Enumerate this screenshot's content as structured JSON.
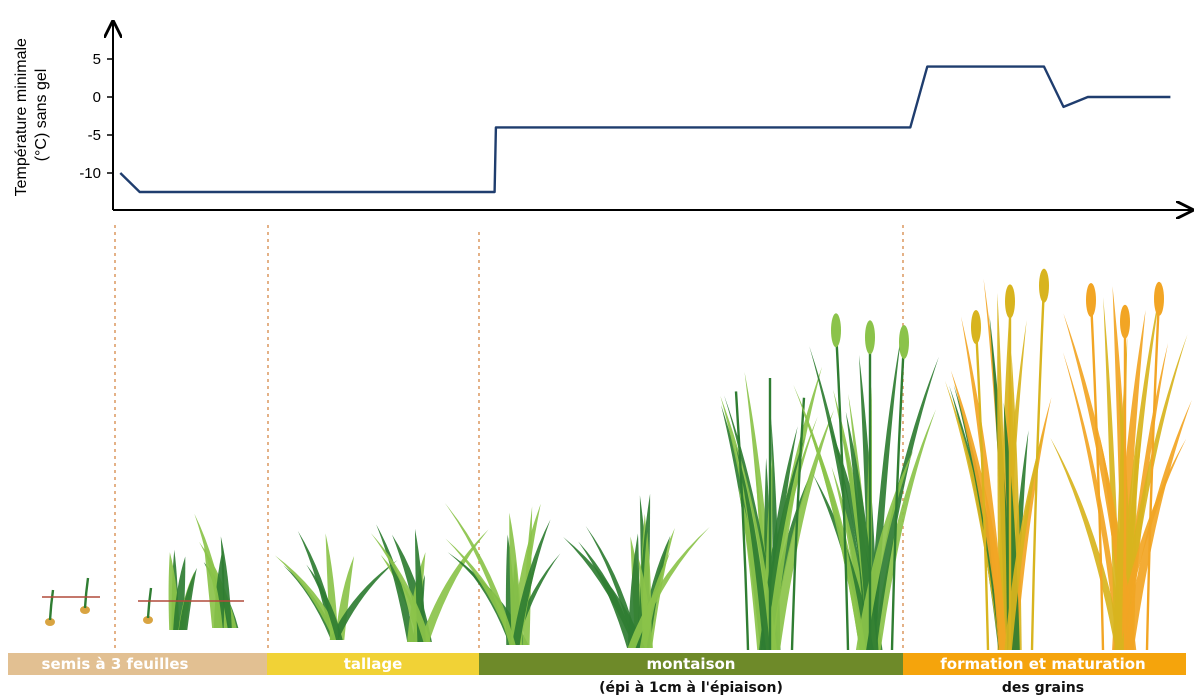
{
  "chart_data": {
    "type": "line",
    "ylabel_line1": "Température minimale",
    "ylabel_line2": "(°C) sans gel",
    "xlabel": "",
    "yticks": [
      5,
      0,
      -5,
      -10
    ],
    "ylim": [
      -14.5,
      9
    ],
    "grid": false,
    "series": [
      {
        "x": [
          0.0,
          0.8,
          15.4,
          15.45,
          32.5,
          33.2,
          38.0,
          38.8,
          39.8,
          43.2
        ],
        "values": [
          -10,
          -12.5,
          -12.5,
          -4,
          -4,
          4,
          4,
          -1.3,
          0,
          0
        ],
        "color": "#1f3d6e"
      }
    ],
    "xlim": [
      -0.3,
      43.8
    ]
  },
  "stages": [
    {
      "label": "semis à 3 feuilles",
      "sublabel": "",
      "color": "#e2c092"
    },
    {
      "label": "tallage",
      "sublabel": "",
      "color": "#f1d236"
    },
    {
      "label": "montaison",
      "sublabel": "(épi à 1cm à l'épiaison)",
      "color": "#6e8a29"
    },
    {
      "label": "formation et maturation",
      "sublabel": "des grains",
      "color": "#f5a40c"
    }
  ],
  "colors": {
    "axis": "#000000",
    "divider": "#e2a97a",
    "leaf_green": "#2f7d32",
    "leaf_light": "#8bc34a",
    "leaf_yellow": "#d8b41e",
    "leaf_orange": "#f2a524"
  }
}
